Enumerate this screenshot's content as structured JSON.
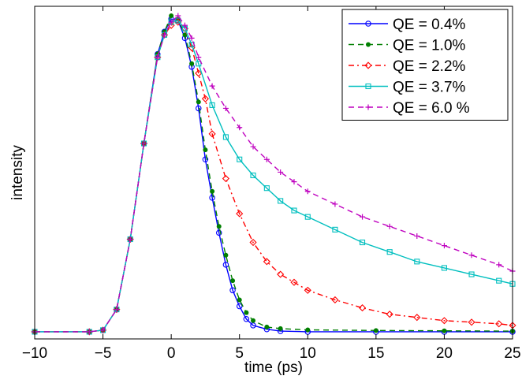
{
  "chart_data": {
    "type": "line",
    "xlabel": "time (ps)",
    "ylabel": "intensity",
    "xlim": [
      -10,
      25
    ],
    "ylim": [
      0,
      1.0
    ],
    "x_ticks": [
      -10,
      -5,
      0,
      5,
      10,
      15,
      20,
      25
    ],
    "x_tick_labels": [
      "−10",
      "−5",
      "0",
      "5",
      "10",
      "15",
      "20",
      "25"
    ],
    "y_ticks_labeled": false,
    "grid": false,
    "legend_position": "top-right",
    "series": [
      {
        "name": "QE = 0.4%",
        "color": "#0000ff",
        "line": "solid",
        "marker": "circle",
        "x": [
          -10,
          -6,
          -5,
          -4,
          -3,
          -2,
          -1,
          -0.5,
          0,
          0.5,
          1,
          1.5,
          2,
          2.5,
          3,
          3.5,
          4,
          4.5,
          5,
          5.5,
          6,
          7,
          8,
          10,
          15,
          20,
          25
        ],
        "y": [
          0.01,
          0.01,
          0.015,
          0.08,
          0.3,
          0.6,
          0.88,
          0.95,
          0.99,
          0.985,
          0.93,
          0.84,
          0.71,
          0.55,
          0.43,
          0.32,
          0.22,
          0.14,
          0.09,
          0.05,
          0.03,
          0.018,
          0.012,
          0.01,
          0.01,
          0.01,
          0.01
        ]
      },
      {
        "name": "QE = 1.0%",
        "color": "#007f00",
        "line": "dashed",
        "marker": "dot",
        "x": [
          -10,
          -6,
          -5,
          -4,
          -3,
          -2,
          -1,
          -0.5,
          0,
          0.5,
          1,
          1.5,
          2,
          2.5,
          3,
          3.5,
          4,
          4.5,
          5,
          5.5,
          6,
          7,
          8,
          10,
          15,
          20,
          25
        ],
        "y": [
          0.01,
          0.01,
          0.015,
          0.08,
          0.3,
          0.6,
          0.88,
          0.95,
          1.0,
          0.99,
          0.94,
          0.85,
          0.73,
          0.58,
          0.45,
          0.34,
          0.25,
          0.17,
          0.11,
          0.07,
          0.045,
          0.025,
          0.02,
          0.016,
          0.014,
          0.013,
          0.012
        ]
      },
      {
        "name": "QE = 2.2%",
        "color": "#ff0000",
        "line": "dashdot",
        "marker": "diamond",
        "x": [
          -10,
          -6,
          -5,
          -4,
          -3,
          -2,
          -1,
          -0.5,
          0,
          0.5,
          1,
          1.5,
          2,
          2.5,
          3,
          4,
          5,
          6,
          7,
          8,
          9,
          10,
          12,
          14,
          16,
          18,
          20,
          22,
          24,
          25
        ],
        "y": [
          0.01,
          0.01,
          0.015,
          0.08,
          0.3,
          0.6,
          0.87,
          0.94,
          0.97,
          0.98,
          0.96,
          0.9,
          0.82,
          0.74,
          0.63,
          0.49,
          0.38,
          0.29,
          0.23,
          0.19,
          0.165,
          0.14,
          0.11,
          0.085,
          0.065,
          0.055,
          0.045,
          0.04,
          0.035,
          0.03
        ]
      },
      {
        "name": "QE = 3.7%",
        "color": "#00bfbf",
        "line": "solid",
        "marker": "square",
        "x": [
          -10,
          -6,
          -5,
          -4,
          -3,
          -2,
          -1,
          -0.5,
          0,
          0.5,
          1,
          1.5,
          2,
          3,
          4,
          5,
          6,
          7,
          8,
          9,
          10,
          12,
          14,
          16,
          18,
          20,
          22,
          24,
          25
        ],
        "y": [
          0.01,
          0.01,
          0.015,
          0.08,
          0.3,
          0.6,
          0.87,
          0.94,
          0.98,
          0.985,
          0.96,
          0.91,
          0.85,
          0.72,
          0.62,
          0.55,
          0.5,
          0.46,
          0.42,
          0.39,
          0.37,
          0.33,
          0.29,
          0.26,
          0.23,
          0.21,
          0.19,
          0.17,
          0.16
        ]
      },
      {
        "name": "QE = 6.0 %",
        "color": "#bf00bf",
        "line": "dashed",
        "marker": "plus",
        "x": [
          -10,
          -6,
          -5,
          -4,
          -3,
          -2,
          -1,
          -0.5,
          0,
          0.5,
          1,
          1.5,
          2,
          3,
          4,
          5,
          6,
          7,
          8,
          9,
          10,
          12,
          14,
          16,
          18,
          20,
          22,
          24,
          25
        ],
        "y": [
          0.01,
          0.01,
          0.015,
          0.08,
          0.3,
          0.6,
          0.87,
          0.94,
          0.98,
          1.0,
          0.97,
          0.93,
          0.87,
          0.78,
          0.71,
          0.65,
          0.59,
          0.55,
          0.51,
          0.48,
          0.45,
          0.41,
          0.37,
          0.34,
          0.31,
          0.28,
          0.25,
          0.22,
          0.2
        ]
      }
    ]
  }
}
